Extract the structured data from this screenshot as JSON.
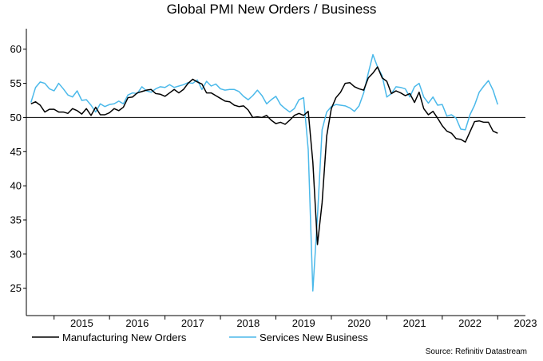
{
  "chart_data": {
    "type": "line",
    "title": "Global PMI New Orders / Business",
    "xlabel": "",
    "ylabel": "",
    "ylim": [
      21,
      63
    ],
    "yticks": [
      25,
      30,
      35,
      40,
      45,
      50,
      55,
      60
    ],
    "reference_line": 50,
    "x_start": 2014.5,
    "x_end": 2023.5,
    "year_labels": [
      "2015",
      "2016",
      "2017",
      "2018",
      "2019",
      "2020",
      "2021",
      "2022",
      "2023"
    ],
    "series": [
      {
        "name": "Manufacturing New Orders",
        "color": "#000000",
        "start": 2014.583,
        "step": 0.0833333,
        "values": [
          52.0,
          52.3,
          51.8,
          50.8,
          51.2,
          51.2,
          50.8,
          50.8,
          50.6,
          51.3,
          51.0,
          50.5,
          51.3,
          50.3,
          51.5,
          50.4,
          50.4,
          50.7,
          51.3,
          51.0,
          51.5,
          52.9,
          53.0,
          53.6,
          53.8,
          54.0,
          54.1,
          53.5,
          53.4,
          53.1,
          53.6,
          54.1,
          53.6,
          54.1,
          55.0,
          55.6,
          55.2,
          54.9,
          53.6,
          53.6,
          53.2,
          52.8,
          52.4,
          52.3,
          51.8,
          51.6,
          51.7,
          51.1,
          50.0,
          50.1,
          50.0,
          50.3,
          49.6,
          49.1,
          49.3,
          49.0,
          49.6,
          50.3,
          50.6,
          50.3,
          50.9,
          43.5,
          31.4,
          37.5,
          47.3,
          51.3,
          52.9,
          53.7,
          55.0,
          55.1,
          54.5,
          54.2,
          54.0,
          55.8,
          56.5,
          57.4,
          55.8,
          55.3,
          53.5,
          53.9,
          53.6,
          53.2,
          53.5,
          52.2,
          53.7,
          51.3,
          50.4,
          50.9,
          49.9,
          48.8,
          48.0,
          47.7,
          46.9,
          46.8,
          46.4,
          47.9,
          49.4,
          49.5,
          49.3,
          49.3,
          48.0,
          47.7
        ]
      },
      {
        "name": "Services New Business",
        "color": "#4bb9ea",
        "start": 2014.583,
        "step": 0.0833333,
        "values": [
          52.2,
          54.4,
          55.2,
          55.0,
          54.2,
          53.9,
          55.0,
          54.2,
          53.3,
          53.0,
          53.9,
          52.5,
          52.6,
          51.8,
          50.8,
          52.0,
          51.6,
          51.9,
          52.0,
          52.4,
          52.0,
          53.3,
          53.6,
          53.5,
          54.5,
          53.9,
          53.7,
          54.2,
          54.5,
          54.4,
          54.8,
          54.4,
          54.6,
          54.8,
          55.1,
          55.0,
          55.5,
          54.1,
          55.3,
          54.6,
          54.9,
          54.2,
          54.0,
          54.1,
          54.1,
          53.8,
          53.1,
          52.6,
          53.2,
          54.0,
          53.2,
          52.0,
          52.6,
          53.1,
          51.9,
          51.3,
          50.8,
          51.3,
          52.6,
          52.9,
          45.3,
          24.6,
          35.5,
          48.2,
          50.8,
          51.6,
          51.9,
          51.8,
          51.7,
          51.4,
          50.9,
          51.7,
          53.6,
          56.5,
          59.2,
          57.4,
          56.1,
          53.0,
          53.5,
          54.5,
          54.4,
          54.2,
          53.0,
          54.5,
          55.0,
          53.0,
          52.1,
          53.0,
          51.8,
          51.9,
          50.2,
          50.4,
          49.9,
          48.3,
          48.2,
          50.4,
          51.8,
          53.7,
          54.6,
          55.4,
          54.0,
          51.9
        ]
      }
    ]
  },
  "source": "Source: Refinitiv Datastream"
}
